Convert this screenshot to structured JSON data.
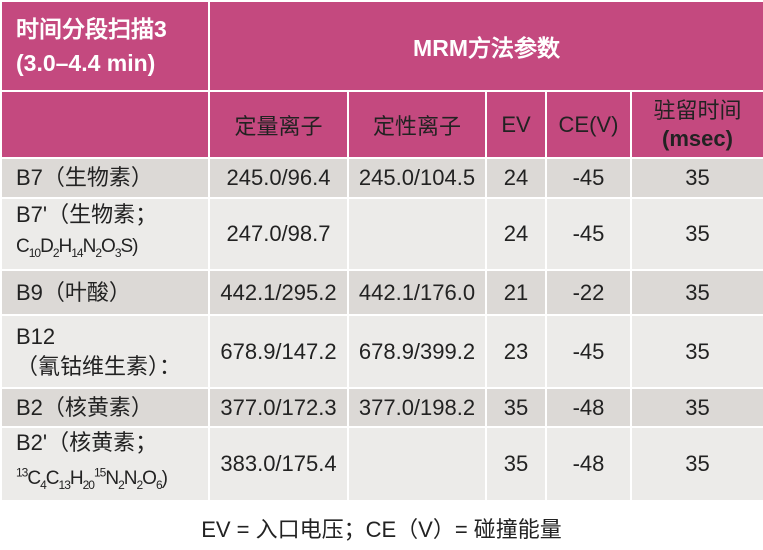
{
  "header": {
    "segment_title": "时间分段扫描3",
    "segment_range": "(3.0–4.4 min)",
    "group_title": "MRM方法参数",
    "columns": [
      "定量离子",
      "定性离子",
      "EV",
      "CE(V)"
    ],
    "dwell_line1": "驻留时间",
    "dwell_line2": "(msec)",
    "color": "#c4497f"
  },
  "rows": [
    {
      "name": "B7（生物素）",
      "formula": null,
      "quant": "245.0/96.4",
      "qual": "245.0/104.5",
      "ev": "24",
      "ce": "-45",
      "dwell": "35"
    },
    {
      "name": "B7'（生物素；",
      "formula": [
        [
          "C",
          ""
        ],
        [
          "10",
          "sub"
        ],
        [
          "D",
          ""
        ],
        [
          "2",
          "sub"
        ],
        [
          "H",
          ""
        ],
        [
          "14",
          "sub"
        ],
        [
          "N",
          ""
        ],
        [
          "2",
          "sub"
        ],
        [
          "O",
          ""
        ],
        [
          "3",
          "sub"
        ],
        [
          "S)",
          ""
        ]
      ],
      "quant": "247.0/98.7",
      "qual": "",
      "ev": "24",
      "ce": "-45",
      "dwell": "35"
    },
    {
      "name": "B9（叶酸）",
      "formula": null,
      "quant": "442.1/295.2",
      "qual": "442.1/176.0",
      "ev": "21",
      "ce": "-22",
      "dwell": "35"
    },
    {
      "name": "B12",
      "name2": "（氰钴维生素）：",
      "formula": null,
      "quant": "678.9/147.2",
      "qual": "678.9/399.2",
      "ev": "23",
      "ce": "-45",
      "dwell": "35"
    },
    {
      "name": "B2（核黄素）",
      "formula": null,
      "quant": "377.0/172.3",
      "qual": "377.0/198.2",
      "ev": "35",
      "ce": "-48",
      "dwell": "35"
    },
    {
      "name": "B2'（核黄素；",
      "formula": [
        [
          "13",
          "sup"
        ],
        [
          "C",
          ""
        ],
        [
          "4",
          "sub"
        ],
        [
          "C",
          ""
        ],
        [
          "13",
          "sub"
        ],
        [
          "H",
          ""
        ],
        [
          "20",
          "sub"
        ],
        [
          "15",
          "sup"
        ],
        [
          "N",
          ""
        ],
        [
          "2",
          "sub"
        ],
        [
          "N",
          ""
        ],
        [
          "2",
          "sub"
        ],
        [
          "O",
          ""
        ],
        [
          "6",
          "sub"
        ],
        [
          ")",
          ""
        ]
      ],
      "quant": "383.0/175.4",
      "qual": "",
      "ev": "35",
      "ce": "-48",
      "dwell": "35"
    }
  ],
  "footnote": "EV = 入口电压；CE（V）= 碰撞能量"
}
